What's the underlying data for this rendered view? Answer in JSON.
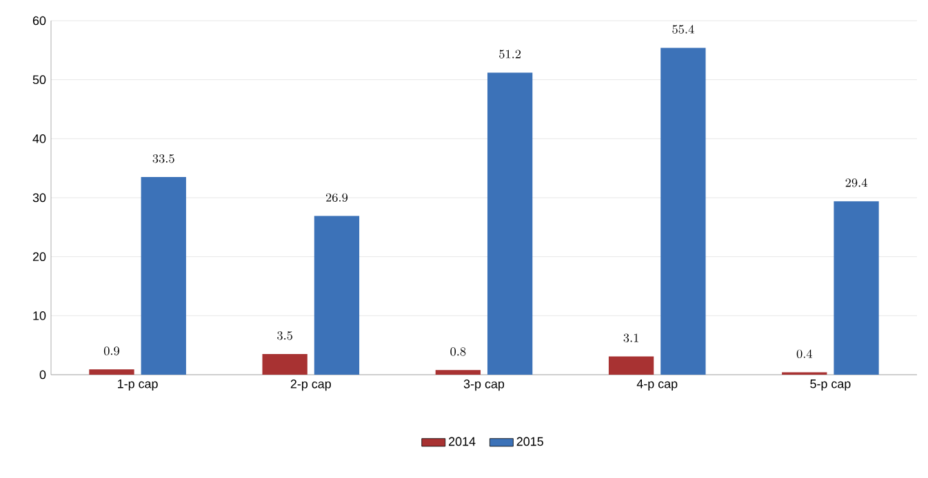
{
  "chart_data": {
    "type": "bar",
    "categories": [
      "1-p cap",
      "2-p cap",
      "3-p cap",
      "4-p cap",
      "5-p cap"
    ],
    "series": [
      {
        "name": "2014",
        "color": "#a83232",
        "values": [
          0.9,
          3.5,
          0.8,
          3.1,
          0.4
        ]
      },
      {
        "name": "2015",
        "color": "#3c72b8",
        "values": [
          33.5,
          26.9,
          51.2,
          55.4,
          29.4
        ]
      }
    ],
    "ylim": [
      0,
      60
    ],
    "yticks": [
      0,
      10,
      20,
      30,
      40,
      50,
      60
    ],
    "grid": "y",
    "legend": "bottom",
    "data_labels": true
  }
}
